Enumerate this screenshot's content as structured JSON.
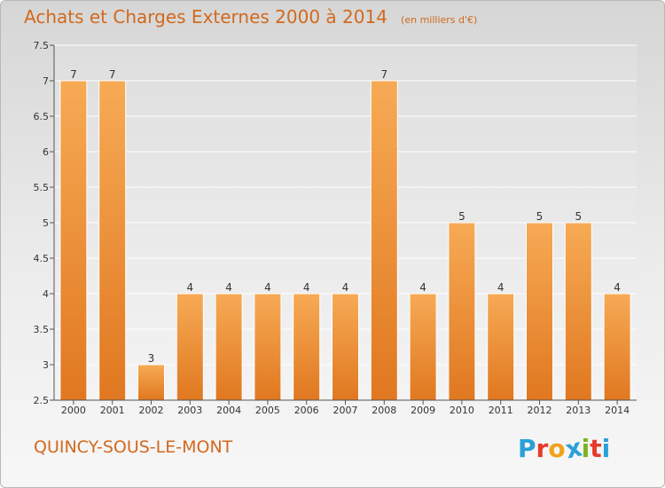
{
  "chart_data": {
    "type": "bar",
    "title": "Achats et Charges Externes 2000 à 2014",
    "subtitle": "(en milliers d'€)",
    "categories": [
      "2000",
      "2001",
      "2002",
      "2003",
      "2004",
      "2005",
      "2006",
      "2007",
      "2008",
      "2009",
      "2010",
      "2011",
      "2012",
      "2013",
      "2014"
    ],
    "values": [
      7,
      7,
      3,
      4,
      4,
      4,
      4,
      4,
      7,
      4,
      5,
      4,
      5,
      5,
      4
    ],
    "ylim": [
      2.5,
      7.5
    ],
    "yticks": [
      "2.5",
      "3",
      "3.5",
      "4",
      "4.5",
      "5",
      "5.5",
      "6",
      "6.5",
      "7",
      "7.5"
    ],
    "grid": true,
    "xlabel": "",
    "ylabel": "",
    "bar_color": "#f4a047"
  },
  "footer": {
    "commune": "QUINCY-SOUS-LE-MONT",
    "logo_text": "Proxiti"
  },
  "colors": {
    "title": "#d2691e",
    "logo": [
      "#2aa0d8",
      "#e83a2a",
      "#f2a11a",
      "#2aa0d8",
      "#7ab51d",
      "#e83a2a",
      "#2aa0d8"
    ]
  }
}
